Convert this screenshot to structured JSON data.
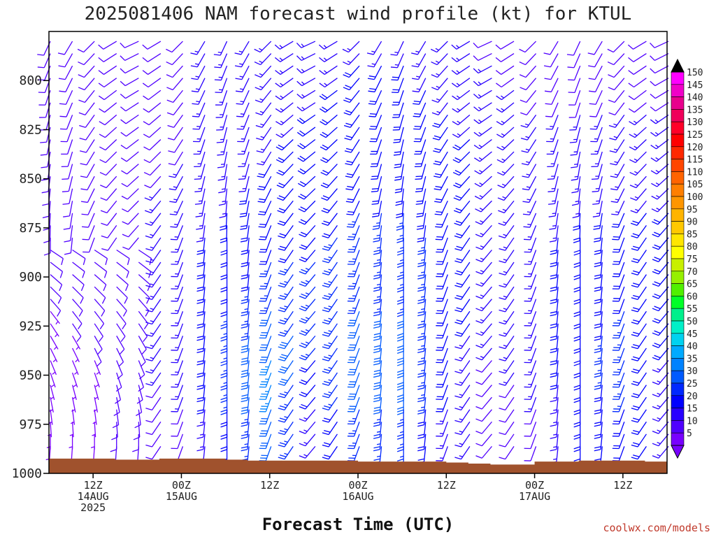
{
  "chart_data": {
    "type": "wind-barb time-height cross section",
    "title": "2025081406 NAM forecast wind profile (kt) for KTUL",
    "xlabel": "Forecast Time (UTC)",
    "ylabel": "",
    "y_axis": {
      "type": "pressure (inverted)",
      "range": [
        1000,
        775
      ],
      "ticks": [
        "800",
        "825",
        "850",
        "875",
        "900",
        "925",
        "950",
        "975",
        "1000"
      ]
    },
    "x_axis": {
      "range_hours_after_run": [
        0,
        84
      ],
      "ticks": [
        {
          "line1": "12Z",
          "line2": "14AUG",
          "line3": "2025"
        },
        {
          "line1": "00Z",
          "line2": "15AUG",
          "line3": ""
        },
        {
          "line1": "12Z",
          "line2": "",
          "line3": ""
        },
        {
          "line1": "00Z",
          "line2": "16AUG",
          "line3": ""
        },
        {
          "line1": "12Z",
          "line2": "",
          "line3": ""
        },
        {
          "line1": "00Z",
          "line2": "17AUG",
          "line3": ""
        },
        {
          "line1": "12Z",
          "line2": "",
          "line3": ""
        }
      ]
    },
    "colorbar": {
      "units": "kt",
      "labels": [
        "150",
        "145",
        "140",
        "135",
        "130",
        "125",
        "120",
        "115",
        "110",
        "105",
        "100",
        "95",
        "90",
        "85",
        "80",
        "75",
        "70",
        "65",
        "60",
        "55",
        "50",
        "45",
        "40",
        "35",
        "30",
        "25",
        "20",
        "15",
        "10",
        "5"
      ],
      "colors": [
        "#ff00ff",
        "#f000c8",
        "#e8008c",
        "#f0005a",
        "#ff0028",
        "#ff0000",
        "#ff2800",
        "#ff4600",
        "#ff6400",
        "#ff7f00",
        "#ff9600",
        "#ffb400",
        "#ffc800",
        "#ffe600",
        "#ffff00",
        "#c8f000",
        "#96f000",
        "#50f000",
        "#00ff28",
        "#00f08c",
        "#00f0c8",
        "#00d2f0",
        "#00aaff",
        "#0082ff",
        "#005aff",
        "#0028ff",
        "#0000ff",
        "#2800ff",
        "#5000ff",
        "#7800ff"
      ]
    },
    "surface_pressure": {
      "hours": [
        0,
        9,
        12,
        15,
        18,
        24,
        27,
        30,
        36,
        39,
        42,
        48,
        51,
        54,
        57,
        60,
        63,
        66,
        72,
        75,
        78,
        81,
        84
      ],
      "hPa": [
        992.5,
        993,
        993,
        992.5,
        992.5,
        993,
        993.5,
        993.5,
        993.5,
        993.5,
        994,
        994,
        994,
        994.5,
        995,
        995.5,
        995.5,
        994,
        993.5,
        993.5,
        993.5,
        994,
        993
      ]
    },
    "wind_speed_kt": {
      "description": "Barbs colored by speed; strongest (30-40 kt) near 925-975 hPa around 15/06Z-15/12Z and 16/00Z-16/06Z; weakest (5-10 kt) near 14/12Z at low levels and in upper levels",
      "levels_hPa": [
        780,
        800,
        825,
        850,
        875,
        900,
        925,
        950,
        975
      ],
      "hours": [
        0,
        6,
        12,
        18,
        24,
        30,
        36,
        42,
        48,
        54,
        60,
        66,
        72,
        78,
        84
      ],
      "speed": [
        [
          10,
          10,
          10,
          10,
          15,
          15,
          15,
          15,
          15,
          15,
          10,
          10,
          10,
          10,
          10
        ],
        [
          10,
          10,
          10,
          10,
          15,
          15,
          15,
          20,
          20,
          15,
          15,
          10,
          10,
          10,
          10
        ],
        [
          10,
          10,
          10,
          10,
          15,
          15,
          20,
          20,
          20,
          20,
          15,
          15,
          15,
          15,
          15
        ],
        [
          10,
          10,
          10,
          15,
          15,
          20,
          20,
          20,
          20,
          20,
          15,
          15,
          15,
          15,
          15
        ],
        [
          10,
          10,
          10,
          15,
          20,
          20,
          20,
          25,
          25,
          20,
          15,
          15,
          20,
          20,
          20
        ],
        [
          10,
          10,
          10,
          15,
          20,
          25,
          25,
          25,
          25,
          20,
          15,
          15,
          20,
          20,
          20
        ],
        [
          5,
          10,
          10,
          15,
          25,
          30,
          25,
          30,
          30,
          20,
          15,
          15,
          20,
          25,
          20
        ],
        [
          5,
          5,
          10,
          15,
          25,
          35,
          20,
          30,
          30,
          20,
          10,
          15,
          20,
          25,
          15
        ],
        [
          5,
          5,
          10,
          10,
          20,
          30,
          15,
          25,
          25,
          15,
          10,
          10,
          20,
          20,
          15
        ]
      ]
    }
  },
  "watermark": "coolwx.com/models",
  "colors": {
    "ground": "#a0522d",
    "axis": "#000000",
    "background": "#ffffff"
  }
}
